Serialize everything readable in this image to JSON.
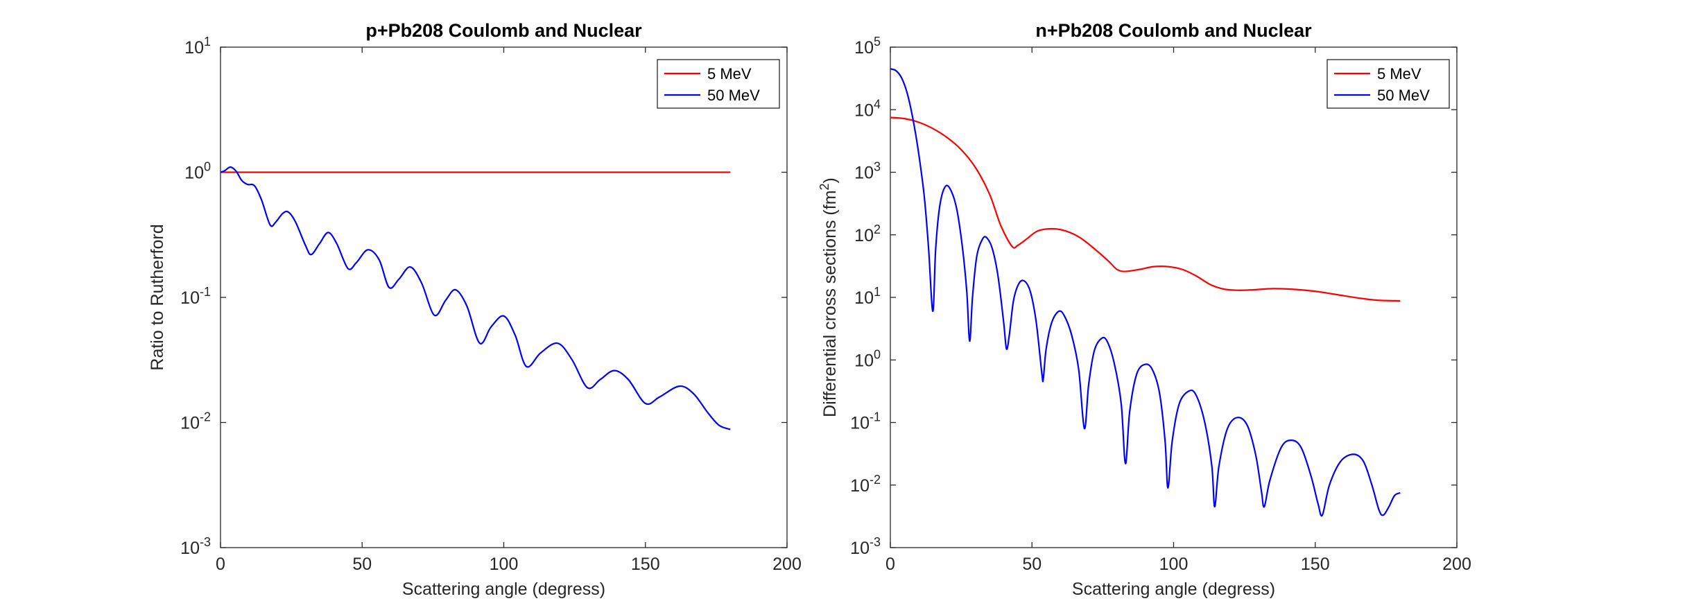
{
  "chart_data": [
    {
      "type": "line",
      "title": "p+Pb208 Coulomb and Nuclear",
      "xlabel": "Scattering angle (degress)",
      "ylabel": "Ratio to Rutherford",
      "xlim": [
        0,
        200
      ],
      "ylim": [
        0.001,
        10
      ],
      "yscale": "log",
      "x_ticks": [
        0,
        50,
        100,
        150,
        200
      ],
      "y_ticks": [
        {
          "value": 0.001,
          "base": "10",
          "exp": "-3"
        },
        {
          "value": 0.01,
          "base": "10",
          "exp": "-2"
        },
        {
          "value": 0.1,
          "base": "10",
          "exp": "-1"
        },
        {
          "value": 1,
          "base": "10",
          "exp": "0"
        },
        {
          "value": 10,
          "base": "10",
          "exp": "1"
        }
      ],
      "grid": false,
      "legend_position": "top-right",
      "series": [
        {
          "name": "5 MeV",
          "color": "#ff0000",
          "points": [
            [
              0,
              1.0
            ],
            [
              180,
              1.0
            ]
          ]
        },
        {
          "name": "50 MeV",
          "color": "#0000ff",
          "points": [
            [
              0,
              1.0
            ],
            [
              1.5,
              1.03
            ],
            [
              3.5,
              1.1
            ],
            [
              5.5,
              1.02
            ],
            [
              7.5,
              0.86
            ],
            [
              9.5,
              0.8
            ],
            [
              12,
              0.78
            ],
            [
              14.5,
              0.6
            ],
            [
              17.5,
              0.38
            ],
            [
              19.5,
              0.4
            ],
            [
              22,
              0.47
            ],
            [
              24,
              0.48
            ],
            [
              26.5,
              0.4
            ],
            [
              30,
              0.26
            ],
            [
              32,
              0.22
            ],
            [
              35,
              0.27
            ],
            [
              38,
              0.33
            ],
            [
              41,
              0.27
            ],
            [
              45,
              0.17
            ],
            [
              48,
              0.19
            ],
            [
              52,
              0.24
            ],
            [
              56,
              0.2
            ],
            [
              59.5,
              0.12
            ],
            [
              63,
              0.14
            ],
            [
              67,
              0.175
            ],
            [
              71,
              0.13
            ],
            [
              75.5,
              0.072
            ],
            [
              79.5,
              0.095
            ],
            [
              83,
              0.115
            ],
            [
              87,
              0.085
            ],
            [
              91.5,
              0.043
            ],
            [
              95.5,
              0.058
            ],
            [
              100,
              0.071
            ],
            [
              104,
              0.05
            ],
            [
              108,
              0.028
            ],
            [
              113,
              0.036
            ],
            [
              119,
              0.043
            ],
            [
              124,
              0.032
            ],
            [
              129.5,
              0.019
            ],
            [
              134,
              0.022
            ],
            [
              139,
              0.026
            ],
            [
              144,
              0.022
            ],
            [
              150,
              0.0142
            ],
            [
              155,
              0.016
            ],
            [
              162,
              0.0195
            ],
            [
              167,
              0.017
            ],
            [
              172,
              0.012
            ],
            [
              176,
              0.0095
            ],
            [
              180,
              0.0088
            ]
          ]
        }
      ]
    },
    {
      "type": "line",
      "title": "n+Pb208 Coulomb and Nuclear",
      "xlabel": "Scattering angle (degress)",
      "ylabel": "Differential cross sections (fm",
      "ylabel_sup": "2",
      "ylabel_end": ")",
      "xlim": [
        0,
        200
      ],
      "ylim": [
        0.001,
        100000
      ],
      "yscale": "log",
      "x_ticks": [
        0,
        50,
        100,
        150,
        200
      ],
      "y_ticks": [
        {
          "value": 0.001,
          "base": "10",
          "exp": "-3"
        },
        {
          "value": 0.01,
          "base": "10",
          "exp": "-2"
        },
        {
          "value": 0.1,
          "base": "10",
          "exp": "-1"
        },
        {
          "value": 1,
          "base": "10",
          "exp": "0"
        },
        {
          "value": 10,
          "base": "10",
          "exp": "1"
        },
        {
          "value": 100,
          "base": "10",
          "exp": "2"
        },
        {
          "value": 1000,
          "base": "10",
          "exp": "3"
        },
        {
          "value": 10000,
          "base": "10",
          "exp": "4"
        },
        {
          "value": 100000,
          "base": "10",
          "exp": "5"
        }
      ],
      "grid": false,
      "legend_position": "top-right",
      "series": [
        {
          "name": "5 MeV",
          "color": "#ff0000",
          "points": [
            [
              0,
              7500
            ],
            [
              5,
              7200
            ],
            [
              10,
              6300
            ],
            [
              15,
              5000
            ],
            [
              20,
              3600
            ],
            [
              25,
              2300
            ],
            [
              30,
              1200
            ],
            [
              35,
              450
            ],
            [
              39,
              140
            ],
            [
              43,
              65
            ],
            [
              45,
              68
            ],
            [
              48,
              85
            ],
            [
              52,
              115
            ],
            [
              57,
              125
            ],
            [
              62,
              115
            ],
            [
              67,
              90
            ],
            [
              72,
              60
            ],
            [
              77,
              38
            ],
            [
              80,
              28
            ],
            [
              83,
              26
            ],
            [
              88,
              28
            ],
            [
              93,
              31
            ],
            [
              98,
              31
            ],
            [
              103,
              28
            ],
            [
              108,
              22
            ],
            [
              113,
              16
            ],
            [
              118,
              13.5
            ],
            [
              123,
              13
            ],
            [
              128,
              13.2
            ],
            [
              135,
              13.8
            ],
            [
              142,
              13.5
            ],
            [
              150,
              12.5
            ],
            [
              158,
              11
            ],
            [
              165,
              9.8
            ],
            [
              172,
              9.0
            ],
            [
              180,
              8.8
            ]
          ]
        },
        {
          "name": "50 MeV",
          "color": "#0000ff",
          "points": [
            [
              0,
              45000
            ],
            [
              2,
              42000
            ],
            [
              4,
              32000
            ],
            [
              6,
              18000
            ],
            [
              8,
              7000
            ],
            [
              10,
              2000
            ],
            [
              12,
              400
            ],
            [
              13.5,
              60
            ],
            [
              15,
              6
            ],
            [
              16,
              60
            ],
            [
              17.5,
              300
            ],
            [
              19.5,
              600
            ],
            [
              21.5,
              500
            ],
            [
              23.5,
              250
            ],
            [
              25.5,
              60
            ],
            [
              27,
              12
            ],
            [
              28,
              2
            ],
            [
              29,
              10
            ],
            [
              30.5,
              45
            ],
            [
              32.5,
              85
            ],
            [
              34,
              90
            ],
            [
              36,
              60
            ],
            [
              38,
              22
            ],
            [
              40,
              4
            ],
            [
              41,
              1.5
            ],
            [
              42,
              2.5
            ],
            [
              43.5,
              9
            ],
            [
              45.5,
              17
            ],
            [
              47.5,
              18
            ],
            [
              49.5,
              12
            ],
            [
              51.5,
              4
            ],
            [
              53.5,
              0.6
            ],
            [
              54,
              0.5
            ],
            [
              55,
              1.5
            ],
            [
              57,
              4
            ],
            [
              59.5,
              6
            ],
            [
              61.5,
              5
            ],
            [
              64,
              2.5
            ],
            [
              66.5,
              0.7
            ],
            [
              68.5,
              0.08
            ],
            [
              70,
              0.4
            ],
            [
              72,
              1.4
            ],
            [
              74.5,
              2.2
            ],
            [
              76.5,
              2
            ],
            [
              79,
              0.9
            ],
            [
              81.5,
              0.2
            ],
            [
              83,
              0.022
            ],
            [
              84.5,
              0.15
            ],
            [
              87,
              0.6
            ],
            [
              90,
              0.85
            ],
            [
              92.5,
              0.7
            ],
            [
              95,
              0.3
            ],
            [
              97,
              0.05
            ],
            [
              98,
              0.009
            ],
            [
              99.5,
              0.05
            ],
            [
              102,
              0.2
            ],
            [
              105.5,
              0.32
            ],
            [
              108,
              0.27
            ],
            [
              111,
              0.1
            ],
            [
              113.5,
              0.02
            ],
            [
              114.5,
              0.0045
            ],
            [
              116,
              0.02
            ],
            [
              119,
              0.08
            ],
            [
              122.5,
              0.12
            ],
            [
              126,
              0.09
            ],
            [
              129,
              0.03
            ],
            [
              131,
              0.008
            ],
            [
              132,
              0.0045
            ],
            [
              134,
              0.012
            ],
            [
              138,
              0.04
            ],
            [
              141.5,
              0.052
            ],
            [
              145,
              0.04
            ],
            [
              148.5,
              0.014
            ],
            [
              151,
              0.005
            ],
            [
              152.5,
              0.0033
            ],
            [
              155,
              0.01
            ],
            [
              159,
              0.024
            ],
            [
              163.5,
              0.031
            ],
            [
              167,
              0.024
            ],
            [
              170,
              0.01
            ],
            [
              172.5,
              0.004
            ],
            [
              174,
              0.0033
            ],
            [
              176,
              0.0045
            ],
            [
              178,
              0.0068
            ],
            [
              180,
              0.0075
            ]
          ]
        }
      ]
    }
  ]
}
